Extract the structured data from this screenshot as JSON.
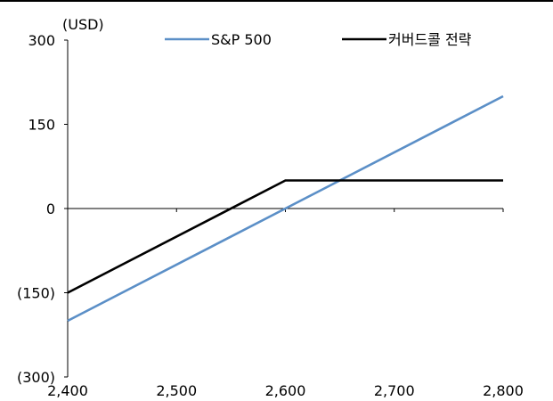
{
  "chart_data": {
    "type": "line",
    "title": "",
    "xlabel": "",
    "ylabel": "(USD)",
    "x": [
      2400,
      2600,
      2800
    ],
    "xlim": [
      2400,
      2800
    ],
    "ylim": [
      -300,
      300
    ],
    "xticks": [
      2400,
      2500,
      2600,
      2700,
      2800
    ],
    "xtick_labels": [
      "2,400",
      "2,500",
      "2,600",
      "2,700",
      "2,800"
    ],
    "yticks": [
      300,
      150,
      0,
      -150,
      -300
    ],
    "ytick_labels": [
      "300",
      "150",
      "0",
      "(150)",
      "(300)"
    ],
    "grid": false,
    "legend_position": "top",
    "series": [
      {
        "name": "S&P 500",
        "color": "#5b8fc7",
        "values": [
          -200,
          0,
          200
        ]
      },
      {
        "name": "커버드콜 전략",
        "color": "#000000",
        "values": [
          -150,
          50,
          50
        ]
      }
    ]
  }
}
